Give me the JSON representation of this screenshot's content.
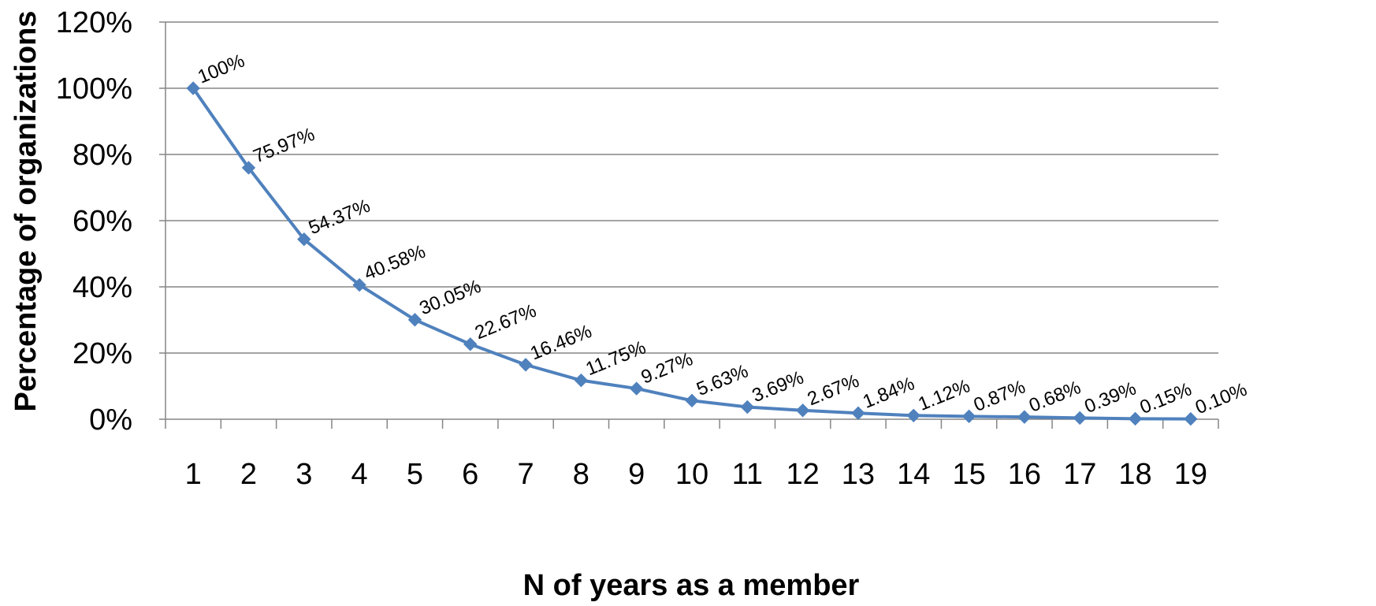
{
  "chart_data": {
    "type": "line",
    "title": "",
    "xlabel": "N of years as a member",
    "ylabel": "Percentage of organizations",
    "categories": [
      "1",
      "2",
      "3",
      "4",
      "5",
      "6",
      "7",
      "8",
      "9",
      "10",
      "11",
      "12",
      "13",
      "14",
      "15",
      "16",
      "17",
      "18",
      "19"
    ],
    "series": [
      {
        "values": [
          100,
          75.97,
          54.37,
          40.58,
          30.05,
          22.67,
          16.46,
          11.75,
          9.27,
          5.63,
          3.69,
          2.67,
          1.84,
          1.12,
          0.87,
          0.68,
          0.39,
          0.15,
          0.1
        ],
        "data_labels": [
          "100%",
          "75.97%",
          "54.37%",
          "40.58%",
          "30.05%",
          "22.67%",
          "16.46%",
          "11.75%",
          "9.27%",
          "5.63%",
          "3.69%",
          "2.67%",
          "1.84%",
          "1.12%",
          "0.87%",
          "0.68%",
          "0.39%",
          "0.15%",
          "0.10%"
        ],
        "color": "#4F81BD",
        "marker": "diamond"
      }
    ],
    "ylim": [
      0,
      120
    ],
    "yticks": [
      0,
      20,
      40,
      60,
      80,
      100,
      120
    ],
    "ytick_labels": [
      "0%",
      "20%",
      "40%",
      "60%",
      "80%",
      "100%",
      "120%"
    ],
    "grid": true,
    "gridline_color": "#868686",
    "legend": "none"
  }
}
